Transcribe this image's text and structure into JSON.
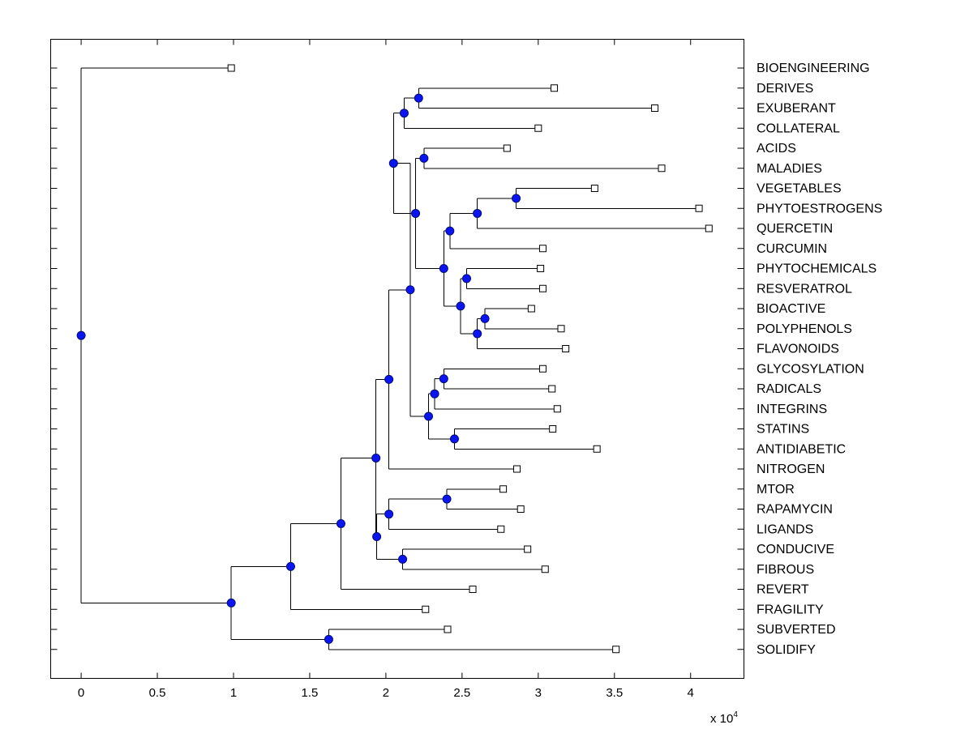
{
  "chart_data": {
    "type": "dendrogram",
    "title": "",
    "xlabel": "",
    "ylabel": "",
    "x_multiplier_label": "x 10",
    "x_multiplier_exponent": "4",
    "xlim": [
      -0.2,
      4.35
    ],
    "x_ticks": [
      0,
      0.5,
      1,
      1.5,
      2,
      2.5,
      3,
      3.5,
      4
    ],
    "x_tick_labels": [
      "0",
      "0.5",
      "1",
      "1.5",
      "2",
      "2.5",
      "3",
      "3.5",
      "4"
    ],
    "leaves": [
      {
        "label": "BIOENGINEERING",
        "x": 0.985
      },
      {
        "label": "DERIVES",
        "x": 3.105
      },
      {
        "label": "EXUBERANT",
        "x": 3.765
      },
      {
        "label": "COLLATERAL",
        "x": 3.0
      },
      {
        "label": "ACIDS",
        "x": 2.795
      },
      {
        "label": "MALADIES",
        "x": 3.81
      },
      {
        "label": "VEGETABLES",
        "x": 3.37
      },
      {
        "label": "PHYTOESTROGENS",
        "x": 4.055
      },
      {
        "label": "QUERCETIN",
        "x": 4.12
      },
      {
        "label": "CURCUMIN",
        "x": 3.03
      },
      {
        "label": "PHYTOCHEMICALS",
        "x": 3.015
      },
      {
        "label": "RESVERATROL",
        "x": 3.03
      },
      {
        "label": "BIOACTIVE",
        "x": 2.955
      },
      {
        "label": "POLYPHENOLS",
        "x": 3.15
      },
      {
        "label": "FLAVONOIDS",
        "x": 3.18
      },
      {
        "label": "GLYCOSYLATION",
        "x": 3.03
      },
      {
        "label": "RADICALS",
        "x": 3.09
      },
      {
        "label": "INTEGRINS",
        "x": 3.125
      },
      {
        "label": "STATINS",
        "x": 3.095
      },
      {
        "label": "ANTIDIABETIC",
        "x": 3.385
      },
      {
        "label": "NITROGEN",
        "x": 2.86
      },
      {
        "label": "MTOR",
        "x": 2.77
      },
      {
        "label": "RAPAMYCIN",
        "x": 2.885
      },
      {
        "label": "LIGANDS",
        "x": 2.755
      },
      {
        "label": "CONDUCIVE",
        "x": 2.93
      },
      {
        "label": "FIBROUS",
        "x": 3.045
      },
      {
        "label": "REVERT",
        "x": 2.57
      },
      {
        "label": "FRAGILITY",
        "x": 2.26
      },
      {
        "label": "SUBVERTED",
        "x": 2.405
      },
      {
        "label": "SOLIDIFY",
        "x": 3.51
      }
    ],
    "merges": [
      {
        "id": "n1",
        "children": [
          "1",
          "2"
        ],
        "x": 2.215
      },
      {
        "id": "n2",
        "children": [
          "n1",
          "3"
        ],
        "x": 2.12
      },
      {
        "id": "n3",
        "children": [
          "4",
          "5"
        ],
        "x": 2.25
      },
      {
        "id": "n4",
        "children": [
          "6",
          "7"
        ],
        "x": 2.855
      },
      {
        "id": "n5",
        "children": [
          "n4",
          "8"
        ],
        "x": 2.6
      },
      {
        "id": "n6",
        "children": [
          "n5",
          "9"
        ],
        "x": 2.42
      },
      {
        "id": "n7",
        "children": [
          "10",
          "11"
        ],
        "x": 2.53
      },
      {
        "id": "n8",
        "children": [
          "12",
          "13"
        ],
        "x": 2.65
      },
      {
        "id": "n9",
        "children": [
          "n8",
          "14"
        ],
        "x": 2.6
      },
      {
        "id": "n10",
        "children": [
          "n7",
          "n9"
        ],
        "x": 2.49
      },
      {
        "id": "n11",
        "children": [
          "n6",
          "n10"
        ],
        "x": 2.38
      },
      {
        "id": "n12",
        "children": [
          "n3",
          "n11"
        ],
        "x": 2.195
      },
      {
        "id": "n13",
        "children": [
          "n2",
          "n12"
        ],
        "x": 2.05
      },
      {
        "id": "n14",
        "children": [
          "15",
          "16"
        ],
        "x": 2.38
      },
      {
        "id": "n15",
        "children": [
          "n14",
          "17"
        ],
        "x": 2.32
      },
      {
        "id": "n16",
        "children": [
          "18",
          "19"
        ],
        "x": 2.45
      },
      {
        "id": "n17",
        "children": [
          "n15",
          "n16"
        ],
        "x": 2.28
      },
      {
        "id": "n18",
        "children": [
          "n13",
          "n17"
        ],
        "x": 2.16
      },
      {
        "id": "n19",
        "children": [
          "n18",
          "20"
        ],
        "x": 2.02
      },
      {
        "id": "n20",
        "children": [
          "21",
          "22"
        ],
        "x": 2.4
      },
      {
        "id": "n21",
        "children": [
          "n20",
          "23"
        ],
        "x": 2.02
      },
      {
        "id": "n22",
        "children": [
          "24",
          "25"
        ],
        "x": 2.11
      },
      {
        "id": "n23",
        "children": [
          "n21",
          "n22"
        ],
        "x": 1.94
      },
      {
        "id": "n24",
        "children": [
          "n19",
          "n23"
        ],
        "x": 1.935
      },
      {
        "id": "n25",
        "children": [
          "n24",
          "26"
        ],
        "x": 1.705
      },
      {
        "id": "n26",
        "children": [
          "n25",
          "27"
        ],
        "x": 1.375
      },
      {
        "id": "n27",
        "children": [
          "28",
          "29"
        ],
        "x": 1.625
      },
      {
        "id": "n28",
        "children": [
          "n26",
          "n27"
        ],
        "x": 0.985
      },
      {
        "id": "n29",
        "children": [
          "0",
          "n28"
        ],
        "x": 0.0
      }
    ]
  }
}
